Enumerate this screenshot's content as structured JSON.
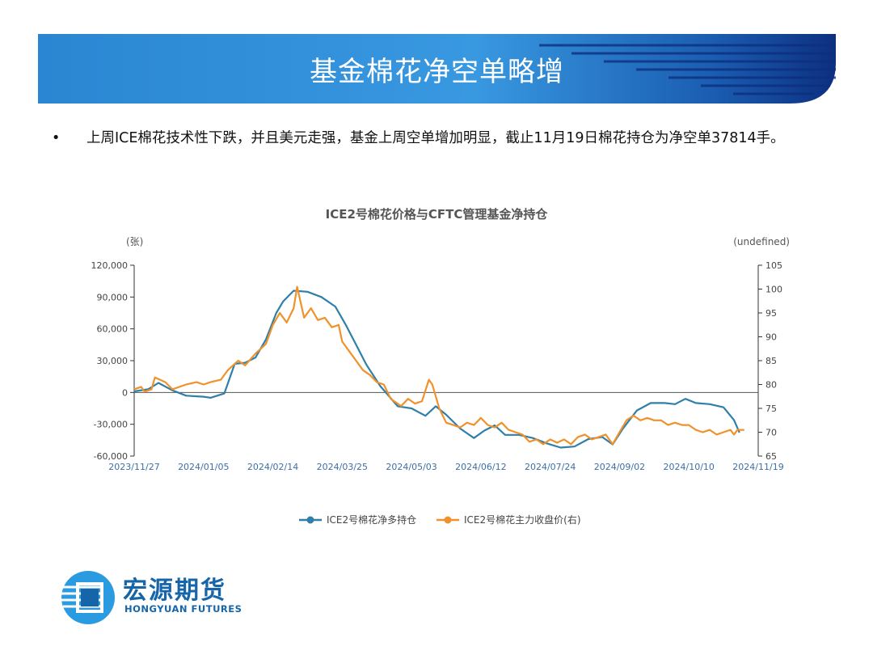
{
  "slide": {
    "title": "基金棉花净空单略增",
    "bullet_symbol": "•",
    "bullet_text": "上周ICE棉花技术性下跌，并且美元走强，基金上周空单增加明显，截止11月19日棉花持仓为净空单37814手。"
  },
  "logo": {
    "name_cn": "宏源期货",
    "name_en": "HONGYUAN FUTURES"
  },
  "colors": {
    "banner_dark": "#0d3a8c",
    "banner_light": "#2f8fd8",
    "series_1": "#2f7fa8",
    "series_2": "#f0922b"
  },
  "chart_data": {
    "type": "line",
    "title": "ICE2号棉花价格与CFTC管理基金净持仓",
    "left_axis_unit": "(张)",
    "right_axis_unit": "(undefined)",
    "y_left": {
      "min": -60000,
      "max": 120000,
      "ticks": [
        "120,000",
        "90,000",
        "60,000",
        "30,000",
        "0",
        "-30,000",
        "-60,000"
      ]
    },
    "y_right": {
      "min": 65,
      "max": 105,
      "ticks": [
        "105",
        "100",
        "95",
        "90",
        "85",
        "80",
        "75",
        "70",
        "65"
      ]
    },
    "x_ticks": [
      "2023/11/27",
      "2024/01/05",
      "2024/02/14",
      "2024/03/25",
      "2024/05/03",
      "2024/06/12",
      "2024/07/24",
      "2024/09/02",
      "2024/10/10",
      "2024/11/19"
    ],
    "legend_position": "bottom",
    "series": [
      {
        "name": "ICE2号棉花净多持仓",
        "axis": "left",
        "points": [
          [
            0,
            1000
          ],
          [
            0.2,
            3000
          ],
          [
            0.35,
            9000
          ],
          [
            0.55,
            2000
          ],
          [
            0.75,
            -3000
          ],
          [
            1.0,
            -4000
          ],
          [
            1.1,
            -5000
          ],
          [
            1.3,
            -1000
          ],
          [
            1.45,
            27000
          ],
          [
            1.6,
            28000
          ],
          [
            1.75,
            33000
          ],
          [
            1.9,
            50000
          ],
          [
            2.05,
            75000
          ],
          [
            2.15,
            86000
          ],
          [
            2.3,
            96000
          ],
          [
            2.5,
            95000
          ],
          [
            2.7,
            90000
          ],
          [
            2.9,
            81000
          ],
          [
            3.05,
            64000
          ],
          [
            3.2,
            45000
          ],
          [
            3.35,
            26000
          ],
          [
            3.55,
            6000
          ],
          [
            3.8,
            -13000
          ],
          [
            4.0,
            -15000
          ],
          [
            4.2,
            -22000
          ],
          [
            4.35,
            -13000
          ],
          [
            4.5,
            -21000
          ],
          [
            4.7,
            -34000
          ],
          [
            4.9,
            -43000
          ],
          [
            5.05,
            -36000
          ],
          [
            5.2,
            -31000
          ],
          [
            5.35,
            -40000
          ],
          [
            5.55,
            -40000
          ],
          [
            5.75,
            -43000
          ],
          [
            5.95,
            -48000
          ],
          [
            6.15,
            -52000
          ],
          [
            6.35,
            -51000
          ],
          [
            6.55,
            -44000
          ],
          [
            6.75,
            -42000
          ],
          [
            6.9,
            -49000
          ],
          [
            7.05,
            -34000
          ],
          [
            7.25,
            -17000
          ],
          [
            7.45,
            -10000
          ],
          [
            7.65,
            -10000
          ],
          [
            7.8,
            -11000
          ],
          [
            7.95,
            -6000
          ],
          [
            8.1,
            -10000
          ],
          [
            8.3,
            -11000
          ],
          [
            8.5,
            -14000
          ],
          [
            8.65,
            -26000
          ],
          [
            8.73,
            -37814
          ]
        ]
      },
      {
        "name": "ICE2号棉花主力收盘价(右)",
        "axis": "right",
        "points": [
          [
            0,
            79
          ],
          [
            0.1,
            79.5
          ],
          [
            0.15,
            78.5
          ],
          [
            0.25,
            79
          ],
          [
            0.3,
            81.5
          ],
          [
            0.45,
            80.5
          ],
          [
            0.55,
            79
          ],
          [
            0.75,
            80
          ],
          [
            0.9,
            80.5
          ],
          [
            1.0,
            80
          ],
          [
            1.1,
            80.5
          ],
          [
            1.25,
            81
          ],
          [
            1.35,
            83
          ],
          [
            1.5,
            85
          ],
          [
            1.6,
            84
          ],
          [
            1.75,
            86.5
          ],
          [
            1.9,
            88.5
          ],
          [
            2.0,
            92.5
          ],
          [
            2.1,
            95
          ],
          [
            2.2,
            93
          ],
          [
            2.3,
            96
          ],
          [
            2.35,
            100.5
          ],
          [
            2.45,
            94
          ],
          [
            2.55,
            96
          ],
          [
            2.65,
            93.5
          ],
          [
            2.75,
            94
          ],
          [
            2.85,
            92
          ],
          [
            2.95,
            92.5
          ],
          [
            3.0,
            89
          ],
          [
            3.1,
            87
          ],
          [
            3.2,
            85
          ],
          [
            3.3,
            83
          ],
          [
            3.4,
            82
          ],
          [
            3.5,
            80.5
          ],
          [
            3.6,
            80
          ],
          [
            3.7,
            77
          ],
          [
            3.85,
            75.5
          ],
          [
            3.95,
            77
          ],
          [
            4.05,
            76
          ],
          [
            4.15,
            76.5
          ],
          [
            4.25,
            81
          ],
          [
            4.3,
            80
          ],
          [
            4.4,
            75
          ],
          [
            4.5,
            72
          ],
          [
            4.6,
            71.5
          ],
          [
            4.7,
            71
          ],
          [
            4.8,
            72
          ],
          [
            4.9,
            71.5
          ],
          [
            5.0,
            73
          ],
          [
            5.1,
            71.5
          ],
          [
            5.2,
            71
          ],
          [
            5.3,
            72
          ],
          [
            5.4,
            70.5
          ],
          [
            5.5,
            70
          ],
          [
            5.6,
            69.5
          ],
          [
            5.7,
            68
          ],
          [
            5.8,
            68.5
          ],
          [
            5.9,
            67.5
          ],
          [
            6.0,
            68.5
          ],
          [
            6.1,
            67.8
          ],
          [
            6.2,
            68.5
          ],
          [
            6.3,
            67.5
          ],
          [
            6.4,
            69
          ],
          [
            6.5,
            69.5
          ],
          [
            6.6,
            68.5
          ],
          [
            6.7,
            69
          ],
          [
            6.8,
            69.5
          ],
          [
            6.9,
            67.5
          ],
          [
            7.0,
            70
          ],
          [
            7.1,
            72.5
          ],
          [
            7.2,
            73.5
          ],
          [
            7.3,
            72.5
          ],
          [
            7.4,
            73
          ],
          [
            7.5,
            72.5
          ],
          [
            7.6,
            72.5
          ],
          [
            7.7,
            71.5
          ],
          [
            7.8,
            72
          ],
          [
            7.9,
            71.5
          ],
          [
            8.0,
            71.5
          ],
          [
            8.1,
            70.5
          ],
          [
            8.2,
            70
          ],
          [
            8.3,
            70.5
          ],
          [
            8.4,
            69.5
          ],
          [
            8.5,
            70
          ],
          [
            8.6,
            70.5
          ],
          [
            8.65,
            69.5
          ],
          [
            8.7,
            70.5
          ],
          [
            8.8,
            70.5
          ]
        ]
      }
    ]
  }
}
